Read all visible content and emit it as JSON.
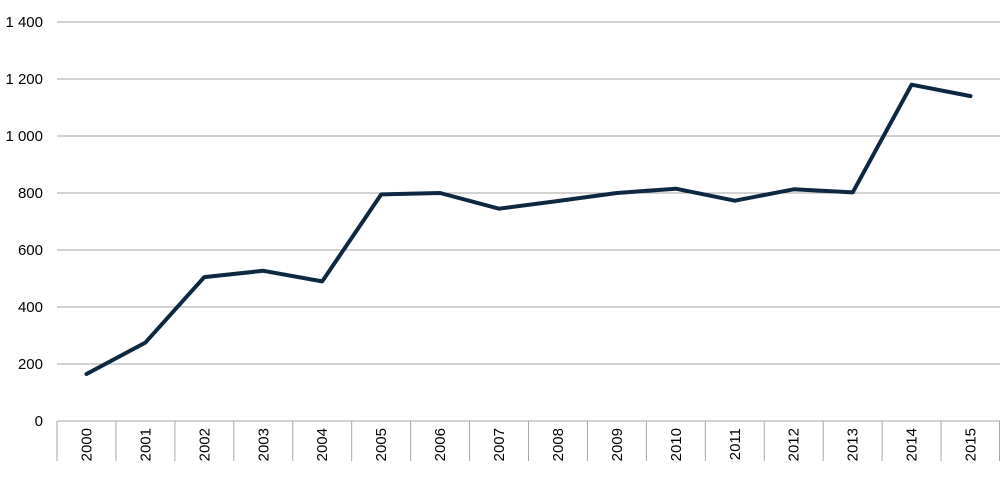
{
  "chart_data": {
    "type": "line",
    "title": "",
    "xlabel": "",
    "ylabel": "",
    "x": [
      "2000",
      "2001",
      "2002",
      "2003",
      "2004",
      "2005",
      "2006",
      "2007",
      "2008",
      "2009",
      "2010",
      "2011",
      "2012",
      "2013",
      "2014",
      "2015"
    ],
    "series": [
      {
        "values": [
          165,
          275,
          505,
          527,
          490,
          795,
          800,
          745,
          772,
          800,
          815,
          773,
          813,
          802,
          1180,
          1140
        ],
        "color": "#0e2841"
      }
    ],
    "ylim": [
      0,
      1400
    ],
    "y_ticks": [
      0,
      200,
      400,
      600,
      800,
      1000,
      1200,
      1400
    ],
    "y_tick_labels": [
      "0",
      "200",
      "400",
      "600",
      "800",
      "1 000",
      "1 200",
      "1 400"
    ],
    "grid": "horizontal",
    "legend": "none"
  }
}
